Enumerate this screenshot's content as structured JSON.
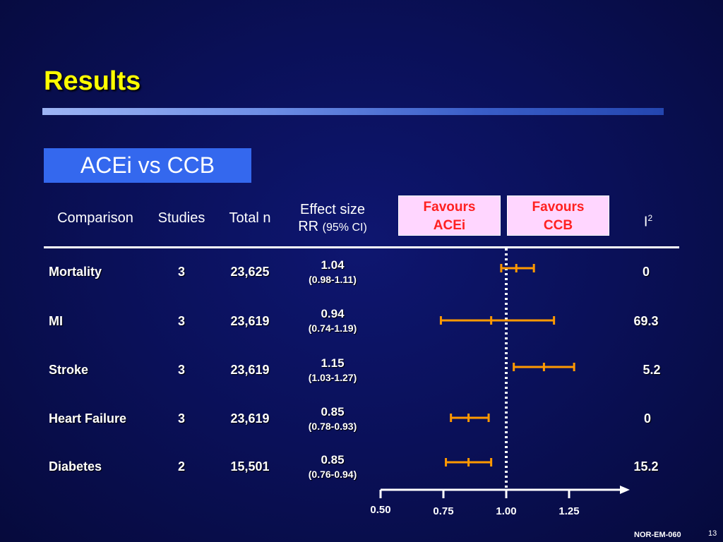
{
  "slide": {
    "title": "Results",
    "subtitle": "ACEi vs CCB",
    "footer_code": "NOR-EM-060",
    "page_number": "13"
  },
  "headers": {
    "comparison": "Comparison",
    "studies": "Studies",
    "total_n": "Total n",
    "effect_size_line1": "Effect size",
    "effect_size_line2_main": "RR",
    "effect_size_line2_ci": "(95% CI)",
    "i2_base": "I",
    "i2_sup": "2",
    "favours_left_line1": "Favours",
    "favours_left_line2": "ACEi",
    "favours_right_line1": "Favours",
    "favours_right_line2": "CCB"
  },
  "rows": [
    {
      "comparison": "Mortality",
      "studies": "3",
      "total_n": "23,625",
      "rr": "1.04",
      "ci": "(0.98-1.11)",
      "i2": "0"
    },
    {
      "comparison": "MI",
      "studies": "3",
      "total_n": "23,619",
      "rr": "0.94",
      "ci": "(0.74-1.19)",
      "i2": "69.3"
    },
    {
      "comparison": "Stroke",
      "studies": "3",
      "total_n": "23,619",
      "rr": "1.15",
      "ci": "(1.03-1.27)",
      "i2": "5.2"
    },
    {
      "comparison": "Heart Failure",
      "studies": "3",
      "total_n": "23,619",
      "rr": "0.85",
      "ci": "(0.78-0.93)",
      "i2": "0"
    },
    {
      "comparison": "Diabetes",
      "studies": "2",
      "total_n": "15,501",
      "rr": "0.85",
      "ci": "(0.76-0.94)",
      "i2": "15.2"
    }
  ],
  "chart_data": {
    "type": "forest",
    "title": "",
    "xlabel": "",
    "ylabel": "",
    "reference_line": 1.0,
    "x_ticks": [
      {
        "value": 0.5,
        "label": "0.50"
      },
      {
        "value": 0.75,
        "label": "0.75"
      },
      {
        "value": 1.0,
        "label": "1.00"
      },
      {
        "value": 1.25,
        "label": "1.25"
      }
    ],
    "points": [
      {
        "label": "Mortality",
        "estimate": 1.04,
        "lower": 0.98,
        "upper": 1.11
      },
      {
        "label": "MI",
        "estimate": 0.94,
        "lower": 0.74,
        "upper": 1.19
      },
      {
        "label": "Stroke",
        "estimate": 1.15,
        "lower": 1.03,
        "upper": 1.27
      },
      {
        "label": "Heart Failure",
        "estimate": 0.85,
        "lower": 0.78,
        "upper": 0.93
      },
      {
        "label": "Diabetes",
        "estimate": 0.85,
        "lower": 0.76,
        "upper": 0.94
      }
    ],
    "colors": {
      "ci_line": "#ff9900",
      "reference_line": "#ffffff",
      "axis": "#ffffff"
    }
  }
}
